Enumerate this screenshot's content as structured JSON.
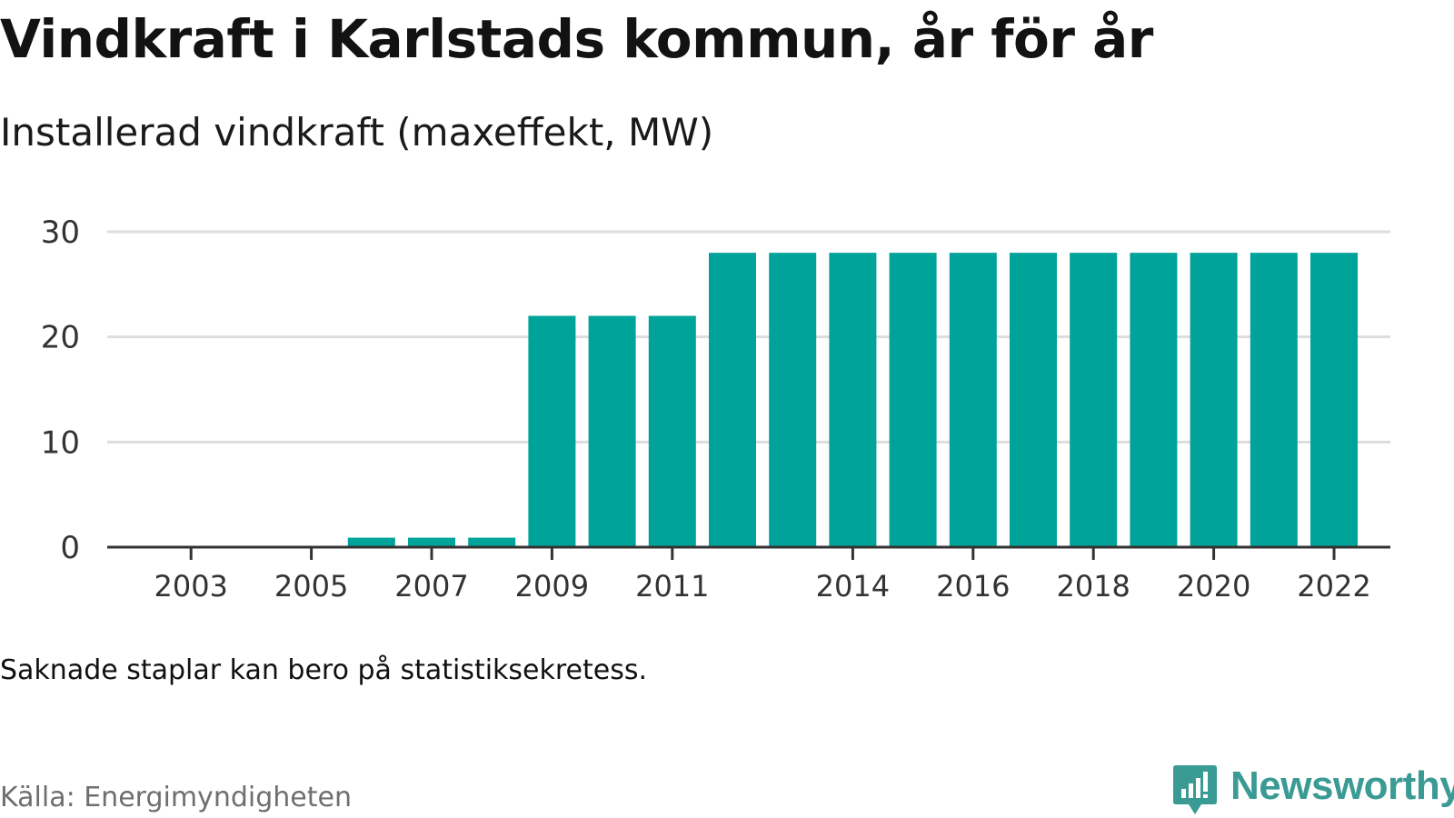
{
  "title": "Vindkraft i Karlstads kommun, år för år",
  "subtitle": "Installerad vindkraft (maxeffekt, MW)",
  "note": "Saknade staplar kan bero på statistiksekretess.",
  "source": "Källa: Energimyndigheten",
  "brand": {
    "name": "Newsworthy",
    "icon": "newsworthy-logo-icon"
  },
  "colors": {
    "bar": "#00a39a",
    "grid": "#dddddd",
    "axis": "#333333",
    "brand": "#3a9a94"
  },
  "chart_data": {
    "type": "bar",
    "categories": [
      "2002",
      "2003",
      "2004",
      "2005",
      "2006",
      "2007",
      "2008",
      "2009",
      "2010",
      "2011",
      "2012",
      "2013",
      "2014",
      "2015",
      "2016",
      "2017",
      "2018",
      "2019",
      "2020",
      "2021",
      "2022"
    ],
    "values": [
      0,
      0,
      0,
      0,
      0.9,
      0.9,
      0.9,
      22,
      22,
      22,
      28,
      28,
      28,
      28,
      28,
      28,
      28,
      28,
      28,
      28,
      28
    ],
    "xtick_labels": [
      "2003",
      "2005",
      "2007",
      "2009",
      "2011",
      "2014",
      "2016",
      "2018",
      "2020",
      "2022"
    ],
    "yticks": [
      0,
      10,
      20,
      30
    ],
    "ylim": [
      0,
      30
    ],
    "xlabel": "",
    "ylabel": "",
    "grid": true,
    "legend": "none"
  }
}
